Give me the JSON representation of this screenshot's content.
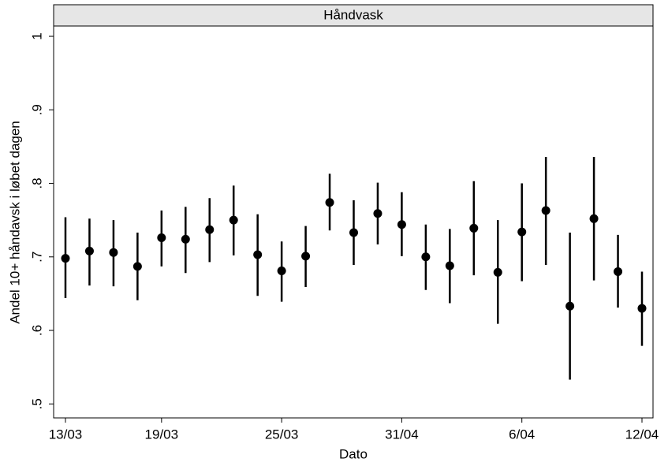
{
  "chart_data": {
    "type": "errorbar",
    "title": "Håndvask",
    "x_label": "Dato",
    "y_label": "Andel 10+ håndavsk i løbet dagen",
    "categories": [
      "13/03",
      null,
      null,
      null,
      "19/03",
      null,
      null,
      null,
      null,
      "25/03",
      null,
      null,
      null,
      null,
      "31/04",
      null,
      null,
      null,
      null,
      "6/04",
      null,
      null,
      null,
      null,
      "12/04"
    ],
    "series": [
      {
        "color": "#000000",
        "values": [
          0.698,
          0.708,
          0.706,
          0.687,
          0.726,
          0.724,
          0.737,
          0.75,
          0.703,
          0.681,
          0.701,
          0.774,
          0.733,
          0.759,
          0.744,
          0.7,
          0.688,
          0.739,
          0.679,
          0.734,
          0.763,
          0.633,
          0.752,
          0.68,
          0.63
        ],
        "lower": [
          0.644,
          0.661,
          0.66,
          0.641,
          0.687,
          0.678,
          0.693,
          0.702,
          0.647,
          0.639,
          0.659,
          0.736,
          0.689,
          0.717,
          0.701,
          0.655,
          0.637,
          0.675,
          0.609,
          0.667,
          0.689,
          0.533,
          0.668,
          0.631,
          0.579
        ],
        "upper": [
          0.754,
          0.752,
          0.75,
          0.733,
          0.763,
          0.768,
          0.78,
          0.797,
          0.758,
          0.721,
          0.742,
          0.813,
          0.777,
          0.801,
          0.788,
          0.744,
          0.738,
          0.803,
          0.75,
          0.8,
          0.836,
          0.733,
          0.836,
          0.73,
          0.68
        ]
      }
    ],
    "ylim": [
      0.481,
      1.014
    ],
    "yticks": [
      {
        "value": 0.5,
        "label": ".5"
      },
      {
        "value": 0.6,
        "label": ".6"
      },
      {
        "value": 0.7,
        "label": ".7"
      },
      {
        "value": 0.8,
        "label": ".8"
      },
      {
        "value": 0.9,
        "label": ".9"
      },
      1
    ]
  }
}
